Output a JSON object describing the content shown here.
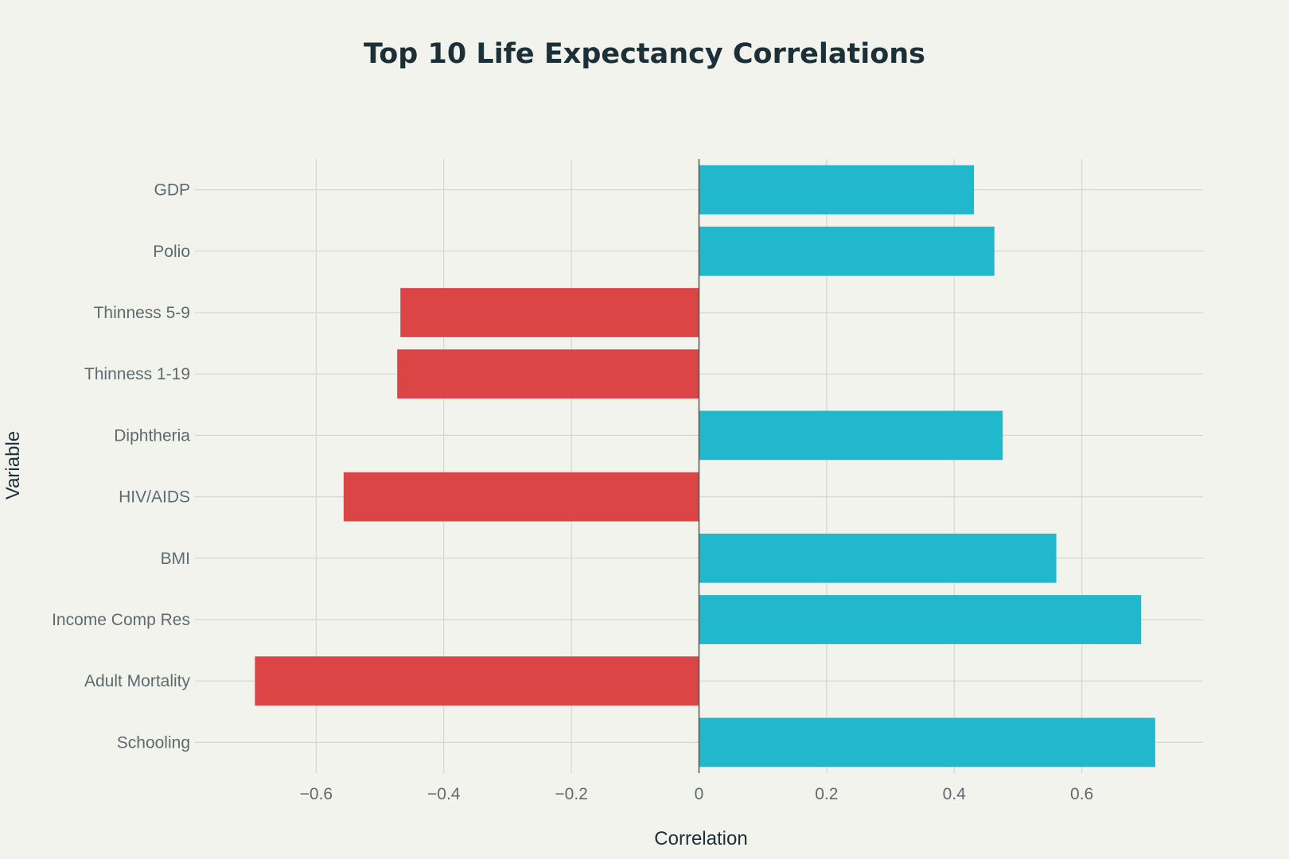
{
  "chart_data": {
    "type": "bar",
    "orientation": "horizontal",
    "title": "Top 10 Life Expectancy Correlations",
    "xlabel": "Correlation",
    "ylabel": "Variable",
    "categories": [
      "GDP",
      "Polio",
      "Thinness 5-9",
      "Thinness 1-19",
      "Diphtheria",
      "HIV/AIDS",
      "BMI",
      "Income Comp Res",
      "Adult Mortality",
      "Schooling"
    ],
    "values": [
      0.431,
      0.463,
      -0.468,
      -0.473,
      0.476,
      -0.557,
      0.56,
      0.693,
      -0.696,
      0.715
    ],
    "xlim": [
      -0.79,
      0.79
    ],
    "xticks": [
      -0.6,
      -0.4,
      -0.2,
      0,
      0.2,
      0.4,
      0.6
    ],
    "xtick_labels": [
      "−0.6",
      "−0.4",
      "−0.2",
      "0",
      "0.2",
      "0.4",
      "0.6"
    ],
    "grid": true,
    "colors": {
      "positive": "#21b8cd",
      "negative": "#db4545",
      "background": "#f3f3ee"
    }
  }
}
